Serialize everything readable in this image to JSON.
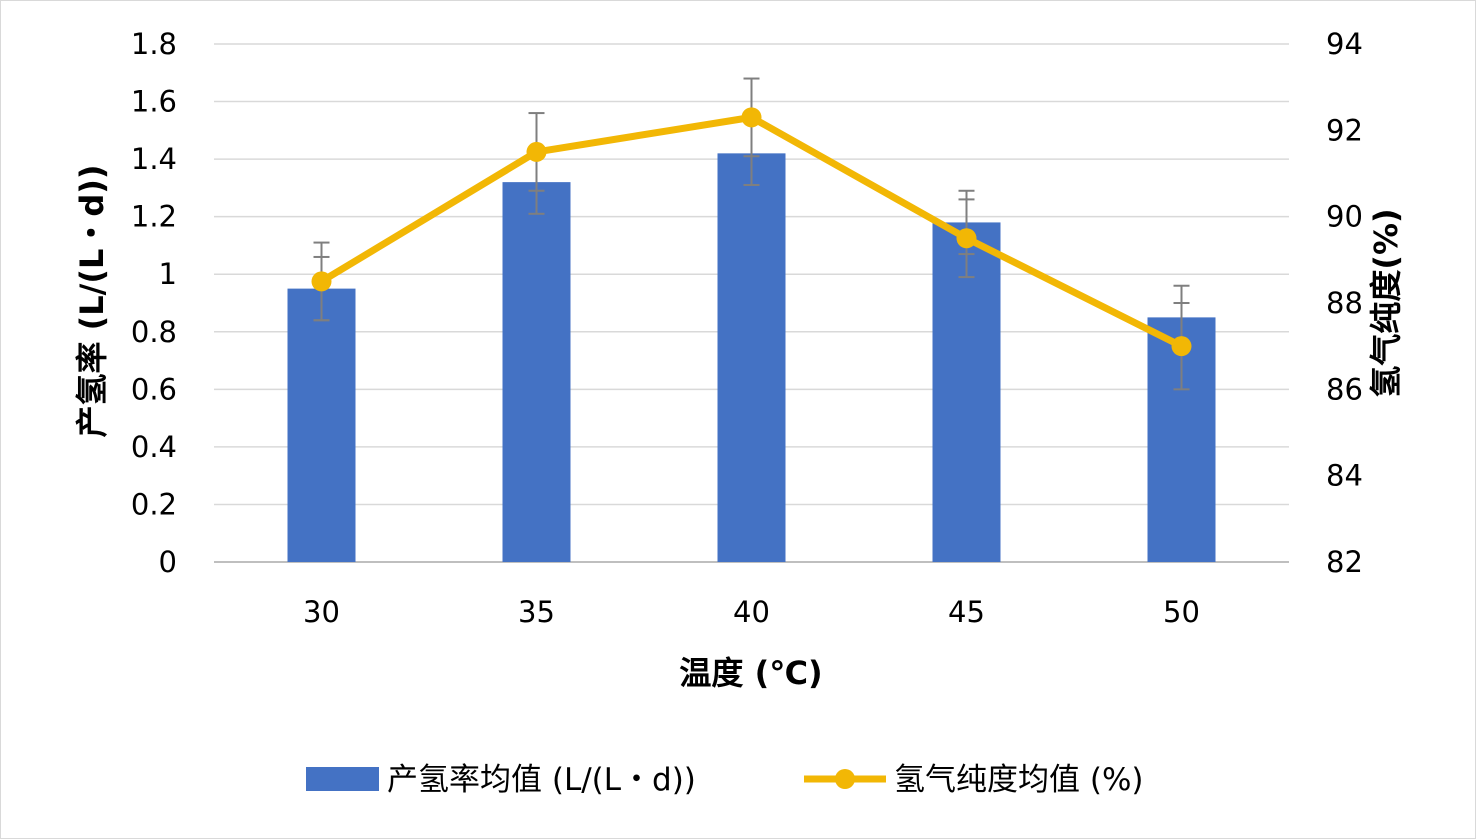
{
  "chart_data": {
    "type": "bar",
    "categories": [
      "30",
      "35",
      "40",
      "45",
      "50"
    ],
    "xlabel": "温度 (℃)",
    "ylabel": "产氢率 (L/(L・d))",
    "y2label": "氢气纯度(%)",
    "ylim": [
      0,
      1.8
    ],
    "y2lim": [
      82,
      94
    ],
    "yticks": [
      "0",
      "0.2",
      "0.4",
      "0.6",
      "0.8",
      "1",
      "1.2",
      "1.4",
      "1.6",
      "1.8"
    ],
    "y2ticks": [
      "82",
      "84",
      "86",
      "88",
      "90",
      "92",
      "94"
    ],
    "grid": true,
    "legend_position": "bottom",
    "series": [
      {
        "name": "产氢率均值 (L/(L・d))",
        "type": "bar",
        "axis": "left",
        "color": "#4472C4",
        "values": [
          0.95,
          1.32,
          1.42,
          1.18,
          0.85
        ],
        "error": [
          0.11,
          0.11,
          0.11,
          0.11,
          0.11
        ]
      },
      {
        "name": "氢气纯度均值 (%)",
        "type": "line",
        "axis": "right",
        "color": "#F2B705",
        "values": [
          88.5,
          91.5,
          92.3,
          89.5,
          87.0
        ],
        "error": [
          0.9,
          0.9,
          0.9,
          0.9,
          1.0
        ]
      }
    ]
  }
}
